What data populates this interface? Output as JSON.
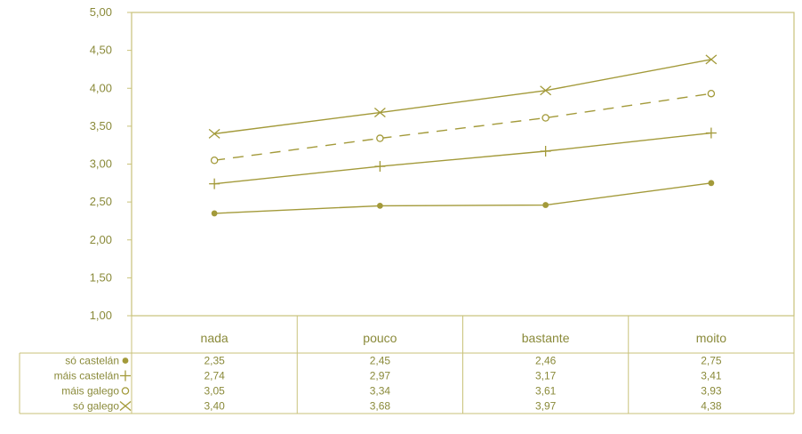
{
  "chart_data": {
    "type": "line",
    "categories": [
      "nada",
      "pouco",
      "bastante",
      "moito"
    ],
    "ylim": [
      1.0,
      5.0
    ],
    "ytick_labels": [
      "1,00",
      "1,50",
      "2,00",
      "2,50",
      "3,00",
      "3,50",
      "4,00",
      "4,50",
      "5,00"
    ],
    "grid": false,
    "legend": "table-below",
    "series": [
      {
        "name": "só castelán",
        "values": [
          2.35,
          2.45,
          2.46,
          2.75
        ],
        "table_values": [
          "2,35",
          "2,45",
          "2,46",
          "2,75"
        ],
        "marker": "●",
        "marker_shape": "dot",
        "dash": false
      },
      {
        "name": "máis castelán",
        "values": [
          2.74,
          2.97,
          3.17,
          3.41
        ],
        "table_values": [
          "2,74",
          "2,97",
          "3,17",
          "3,41"
        ],
        "marker": "+",
        "marker_shape": "plus",
        "dash": false
      },
      {
        "name": "máis galego",
        "values": [
          3.05,
          3.34,
          3.61,
          3.93
        ],
        "table_values": [
          "3,05",
          "3,34",
          "3,61",
          "3,93"
        ],
        "marker": "¤",
        "marker_shape": "circle",
        "dash": true
      },
      {
        "name": "só galego",
        "values": [
          3.4,
          3.68,
          3.97,
          4.38
        ],
        "table_values": [
          "3,40",
          "3,68",
          "3,97",
          "4,38"
        ],
        "marker": "×",
        "marker_shape": "cross",
        "dash": false
      }
    ],
    "colors": {
      "line": "#a39a3a",
      "text": "#8a8a3a",
      "frame": "#c9c27a"
    }
  }
}
